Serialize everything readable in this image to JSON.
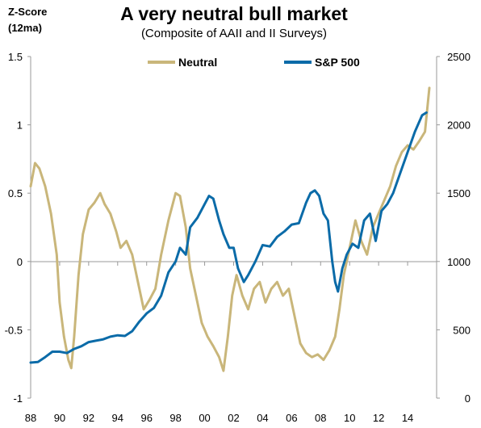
{
  "chart_data": {
    "type": "line",
    "title": "A very neutral bull market",
    "subtitle": "(Composite of AAII  and  II Surveys)",
    "ylabel_left": [
      "Z-Score",
      "(12ma)"
    ],
    "ylim_left": [
      -1,
      1.5
    ],
    "ylim_right": [
      0,
      2500
    ],
    "xlim": [
      1988,
      2016
    ],
    "y_ticks_left": [
      "1.5",
      "1",
      "0.5",
      "0",
      "-0.5",
      "-1"
    ],
    "y_ticks_right": [
      "2500",
      "2000",
      "1500",
      "1000",
      "500",
      "0"
    ],
    "x_ticks": [
      "88",
      "90",
      "92",
      "94",
      "96",
      "98",
      "00",
      "02",
      "04",
      "06",
      "08",
      "10",
      "12",
      "14"
    ],
    "grid": false,
    "legend": "top",
    "colors": {
      "neutral": "#C9B67A",
      "sp500": "#0B6BA8",
      "axis": "#999999"
    },
    "series": [
      {
        "name": "Neutral",
        "axis": "left",
        "x": [
          1988.0,
          1988.3,
          1988.6,
          1989.0,
          1989.4,
          1989.8,
          1990.0,
          1990.3,
          1990.6,
          1990.8,
          1991.0,
          1991.3,
          1991.6,
          1992.0,
          1992.4,
          1992.8,
          1993.1,
          1993.5,
          1993.9,
          1994.2,
          1994.6,
          1995.0,
          1995.4,
          1995.8,
          1996.2,
          1996.6,
          1997.0,
          1997.5,
          1998.0,
          1998.3,
          1998.7,
          1999.0,
          1999.4,
          1999.8,
          2000.2,
          2000.6,
          2001.0,
          2001.3,
          2001.6,
          2001.9,
          2002.2,
          2002.6,
          2003.0,
          2003.4,
          2003.8,
          2004.2,
          2004.6,
          2005.0,
          2005.4,
          2005.8,
          2006.2,
          2006.6,
          2007.0,
          2007.4,
          2007.8,
          2008.2,
          2008.6,
          2009.0,
          2009.3,
          2009.6,
          2010.0,
          2010.4,
          2010.8,
          2011.2,
          2011.6,
          2012.0,
          2012.4,
          2012.8,
          2013.2,
          2013.6,
          2014.0,
          2014.4,
          2014.8,
          2015.2,
          2015.5
        ],
        "values": [
          0.55,
          0.72,
          0.68,
          0.55,
          0.35,
          0.05,
          -0.3,
          -0.55,
          -0.72,
          -0.78,
          -0.55,
          -0.1,
          0.2,
          0.38,
          0.43,
          0.5,
          0.42,
          0.35,
          0.22,
          0.1,
          0.15,
          0.05,
          -0.15,
          -0.35,
          -0.28,
          -0.2,
          0.05,
          0.3,
          0.5,
          0.48,
          0.25,
          -0.05,
          -0.25,
          -0.45,
          -0.55,
          -0.62,
          -0.7,
          -0.8,
          -0.55,
          -0.25,
          -0.1,
          -0.25,
          -0.35,
          -0.2,
          -0.15,
          -0.3,
          -0.2,
          -0.15,
          -0.25,
          -0.2,
          -0.4,
          -0.6,
          -0.67,
          -0.7,
          -0.68,
          -0.72,
          -0.65,
          -0.55,
          -0.35,
          -0.1,
          0.1,
          0.3,
          0.15,
          0.05,
          0.25,
          0.35,
          0.45,
          0.55,
          0.7,
          0.8,
          0.85,
          0.82,
          0.88,
          0.95,
          1.27
        ]
      },
      {
        "name": "S&P 500",
        "axis": "right",
        "x": [
          1988.0,
          1988.5,
          1989.0,
          1989.5,
          1990.0,
          1990.5,
          1991.0,
          1991.5,
          1992.0,
          1992.5,
          1993.0,
          1993.5,
          1994.0,
          1994.5,
          1995.0,
          1995.5,
          1996.0,
          1996.5,
          1997.0,
          1997.5,
          1998.0,
          1998.3,
          1998.7,
          1999.0,
          1999.5,
          2000.0,
          2000.3,
          2000.6,
          2001.0,
          2001.3,
          2001.7,
          2002.0,
          2002.3,
          2002.7,
          2003.0,
          2003.5,
          2004.0,
          2004.5,
          2005.0,
          2005.5,
          2006.0,
          2006.5,
          2007.0,
          2007.3,
          2007.6,
          2007.9,
          2008.2,
          2008.5,
          2008.8,
          2009.0,
          2009.2,
          2009.5,
          2009.8,
          2010.2,
          2010.6,
          2011.0,
          2011.4,
          2011.8,
          2012.2,
          2012.6,
          2013.0,
          2013.5,
          2014.0,
          2014.5,
          2015.0,
          2015.3
        ],
        "values": [
          260,
          265,
          300,
          340,
          340,
          330,
          360,
          380,
          410,
          420,
          430,
          450,
          460,
          455,
          490,
          560,
          620,
          660,
          750,
          920,
          1000,
          1100,
          1050,
          1250,
          1320,
          1420,
          1480,
          1460,
          1300,
          1200,
          1100,
          1100,
          950,
          850,
          900,
          1000,
          1120,
          1110,
          1180,
          1220,
          1270,
          1280,
          1430,
          1500,
          1520,
          1480,
          1350,
          1300,
          1000,
          850,
          780,
          950,
          1050,
          1130,
          1100,
          1300,
          1350,
          1150,
          1370,
          1420,
          1500,
          1650,
          1800,
          1950,
          2070,
          2090
        ]
      }
    ]
  }
}
